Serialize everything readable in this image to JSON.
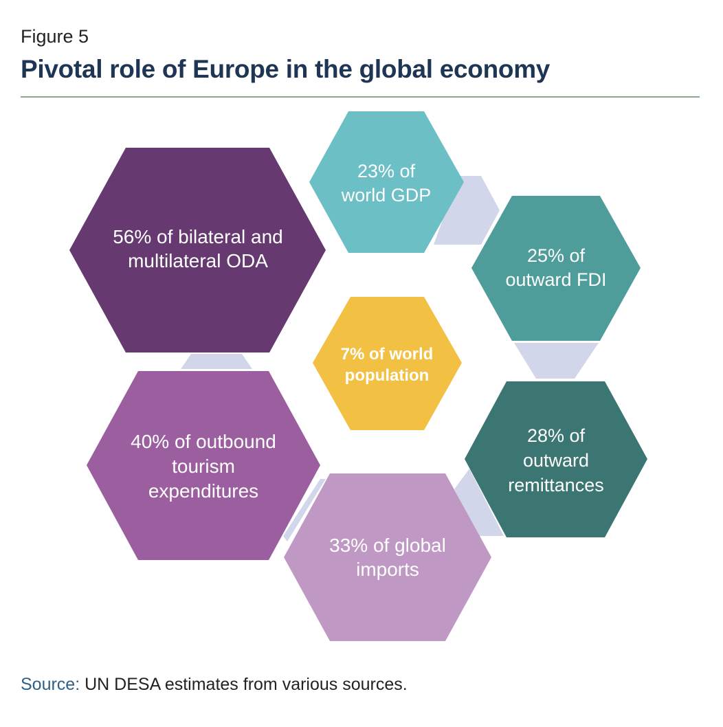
{
  "figure_label": "Figure 5",
  "title": "Pivotal role of Europe in the global economy",
  "source": {
    "label": "Source:",
    "text": " UN DESA estimates from various sources."
  },
  "colors": {
    "title": "#1e3554",
    "rule": "#8ea58e",
    "connector": "#d2d6ea",
    "source_label": "#2f5f86"
  },
  "hexagons": [
    {
      "id": "oda",
      "lines": [
        "56% of bilateral and",
        "multilateral ODA"
      ],
      "color": "#663a70"
    },
    {
      "id": "gdp",
      "lines": [
        "23% of",
        "world GDP"
      ],
      "color": "#6bbfc5"
    },
    {
      "id": "fdi",
      "lines": [
        "25% of",
        "outward FDI"
      ],
      "color": "#4e9d9a"
    },
    {
      "id": "population",
      "lines": [
        "7% of world",
        "population"
      ],
      "color": "#f2c043",
      "bold": true
    },
    {
      "id": "tourism",
      "lines": [
        "40% of outbound",
        "tourism",
        "expenditures"
      ],
      "color": "#9b5fa0"
    },
    {
      "id": "remittances",
      "lines": [
        "28% of",
        "outward",
        "remittances"
      ],
      "color": "#3b7673"
    },
    {
      "id": "imports",
      "lines": [
        "33% of global",
        "imports"
      ],
      "color": "#bf99c3"
    }
  ]
}
